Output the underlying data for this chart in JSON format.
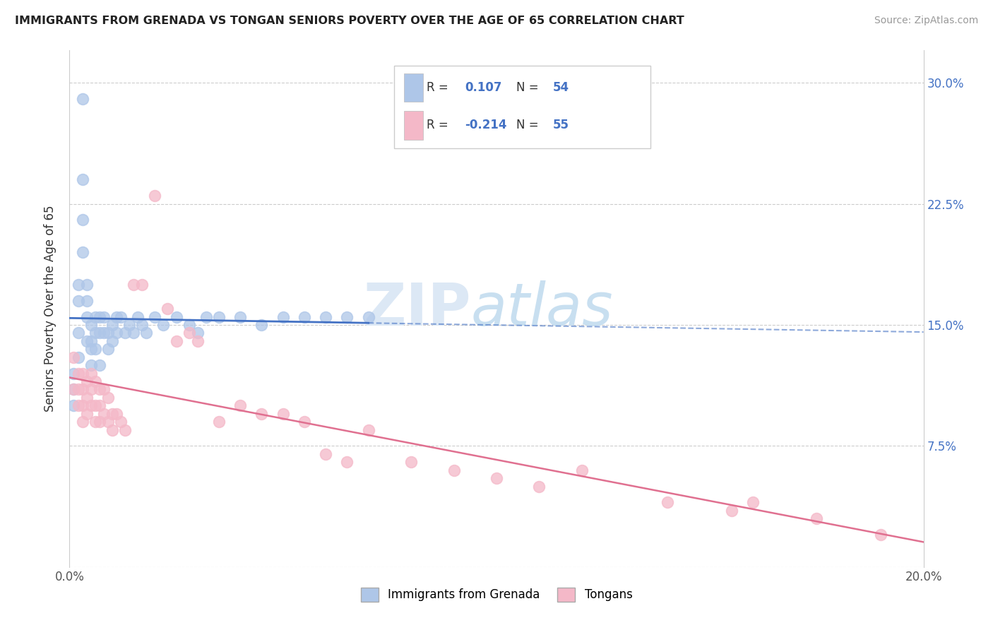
{
  "title": "IMMIGRANTS FROM GRENADA VS TONGAN SENIORS POVERTY OVER THE AGE OF 65 CORRELATION CHART",
  "source": "Source: ZipAtlas.com",
  "ylabel": "Seniors Poverty Over the Age of 65",
  "xlim": [
    0.0,
    0.2
  ],
  "ylim": [
    0.0,
    0.32
  ],
  "x_ticks": [
    0.0,
    0.05,
    0.1,
    0.15,
    0.2
  ],
  "y_ticks": [
    0.0,
    0.075,
    0.15,
    0.225,
    0.3
  ],
  "grenada_color": "#aec6e8",
  "tongan_color": "#f4b8c8",
  "grenada_line_color": "#4472c4",
  "tongan_line_color": "#e07090",
  "grenada_R": 0.107,
  "grenada_N": 54,
  "tongan_R": -0.214,
  "tongan_N": 55,
  "grenada_x": [
    0.001,
    0.001,
    0.001,
    0.002,
    0.002,
    0.002,
    0.002,
    0.003,
    0.003,
    0.003,
    0.003,
    0.004,
    0.004,
    0.004,
    0.004,
    0.005,
    0.005,
    0.005,
    0.005,
    0.006,
    0.006,
    0.006,
    0.007,
    0.007,
    0.007,
    0.008,
    0.008,
    0.009,
    0.009,
    0.01,
    0.01,
    0.011,
    0.011,
    0.012,
    0.013,
    0.014,
    0.015,
    0.016,
    0.017,
    0.018,
    0.02,
    0.022,
    0.025,
    0.028,
    0.03,
    0.032,
    0.035,
    0.04,
    0.045,
    0.05,
    0.055,
    0.06,
    0.065,
    0.07
  ],
  "grenada_y": [
    0.12,
    0.11,
    0.1,
    0.175,
    0.165,
    0.145,
    0.13,
    0.29,
    0.24,
    0.215,
    0.195,
    0.175,
    0.165,
    0.155,
    0.14,
    0.15,
    0.14,
    0.135,
    0.125,
    0.155,
    0.145,
    0.135,
    0.155,
    0.145,
    0.125,
    0.155,
    0.145,
    0.145,
    0.135,
    0.15,
    0.14,
    0.155,
    0.145,
    0.155,
    0.145,
    0.15,
    0.145,
    0.155,
    0.15,
    0.145,
    0.155,
    0.15,
    0.155,
    0.15,
    0.145,
    0.155,
    0.155,
    0.155,
    0.15,
    0.155,
    0.155,
    0.155,
    0.155,
    0.155
  ],
  "tongan_x": [
    0.001,
    0.001,
    0.002,
    0.002,
    0.002,
    0.003,
    0.003,
    0.003,
    0.003,
    0.004,
    0.004,
    0.004,
    0.005,
    0.005,
    0.005,
    0.006,
    0.006,
    0.006,
    0.007,
    0.007,
    0.007,
    0.008,
    0.008,
    0.009,
    0.009,
    0.01,
    0.01,
    0.011,
    0.012,
    0.013,
    0.015,
    0.017,
    0.02,
    0.023,
    0.025,
    0.028,
    0.03,
    0.035,
    0.04,
    0.045,
    0.05,
    0.055,
    0.06,
    0.065,
    0.07,
    0.08,
    0.09,
    0.1,
    0.11,
    0.12,
    0.14,
    0.155,
    0.16,
    0.175,
    0.19
  ],
  "tongan_y": [
    0.13,
    0.11,
    0.12,
    0.11,
    0.1,
    0.12,
    0.11,
    0.1,
    0.09,
    0.115,
    0.105,
    0.095,
    0.12,
    0.11,
    0.1,
    0.115,
    0.1,
    0.09,
    0.11,
    0.1,
    0.09,
    0.11,
    0.095,
    0.105,
    0.09,
    0.095,
    0.085,
    0.095,
    0.09,
    0.085,
    0.175,
    0.175,
    0.23,
    0.16,
    0.14,
    0.145,
    0.14,
    0.09,
    0.1,
    0.095,
    0.095,
    0.09,
    0.07,
    0.065,
    0.085,
    0.065,
    0.06,
    0.055,
    0.05,
    0.06,
    0.04,
    0.035,
    0.04,
    0.03,
    0.02
  ]
}
